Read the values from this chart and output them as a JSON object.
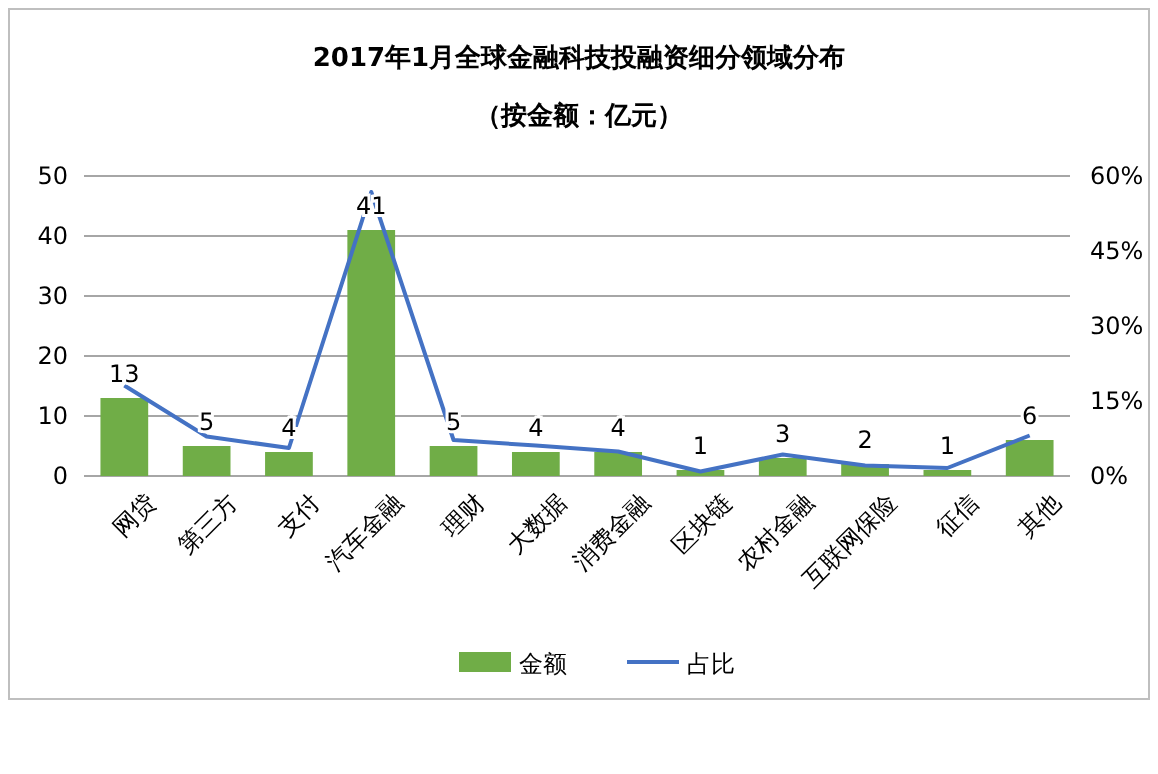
{
  "chart_data": {
    "type": "bar",
    "title": "2017年1月全球金融科技投融资细分领域分布",
    "subtitle": "（按金额：亿元）",
    "categories": [
      "网贷",
      "第三方",
      "支付",
      "汽车金融",
      "理财",
      "大数据",
      "消费金融",
      "区块链",
      "农村金融",
      "互联网保险",
      "征信",
      "其他"
    ],
    "series": [
      {
        "name": "金额",
        "color": "#70ad47",
        "values": [
          13,
          5,
          4,
          41,
          5,
          4,
          4,
          1,
          3,
          2,
          1,
          6
        ],
        "value_labels": [
          "13",
          "5",
          "4",
          "41",
          "5",
          "4",
          "4",
          "1",
          "3",
          "2",
          "1",
          "6"
        ]
      },
      {
        "name": "占比",
        "type": "line",
        "axis": "y2",
        "color": "#4472c4",
        "values": [
          18.1,
          7.9,
          5.6,
          56.8,
          7.2,
          6.1,
          4.9,
          0.9,
          4.3,
          2.1,
          1.6,
          8.1
        ]
      }
    ],
    "ylim": [
      0,
      50
    ],
    "yticks": [
      0,
      10,
      20,
      30,
      40,
      50
    ],
    "y2lim": [
      0,
      60
    ],
    "y2ticks": [
      {
        "value": 0,
        "label": "0%"
      },
      {
        "value": 15,
        "label": "15%"
      },
      {
        "value": 30,
        "label": "30%"
      },
      {
        "value": 45,
        "label": "45%"
      },
      {
        "value": 60,
        "label": "60%"
      }
    ],
    "grid": "y",
    "legend": "bottom",
    "marker": "none",
    "line_style": "solid"
  }
}
